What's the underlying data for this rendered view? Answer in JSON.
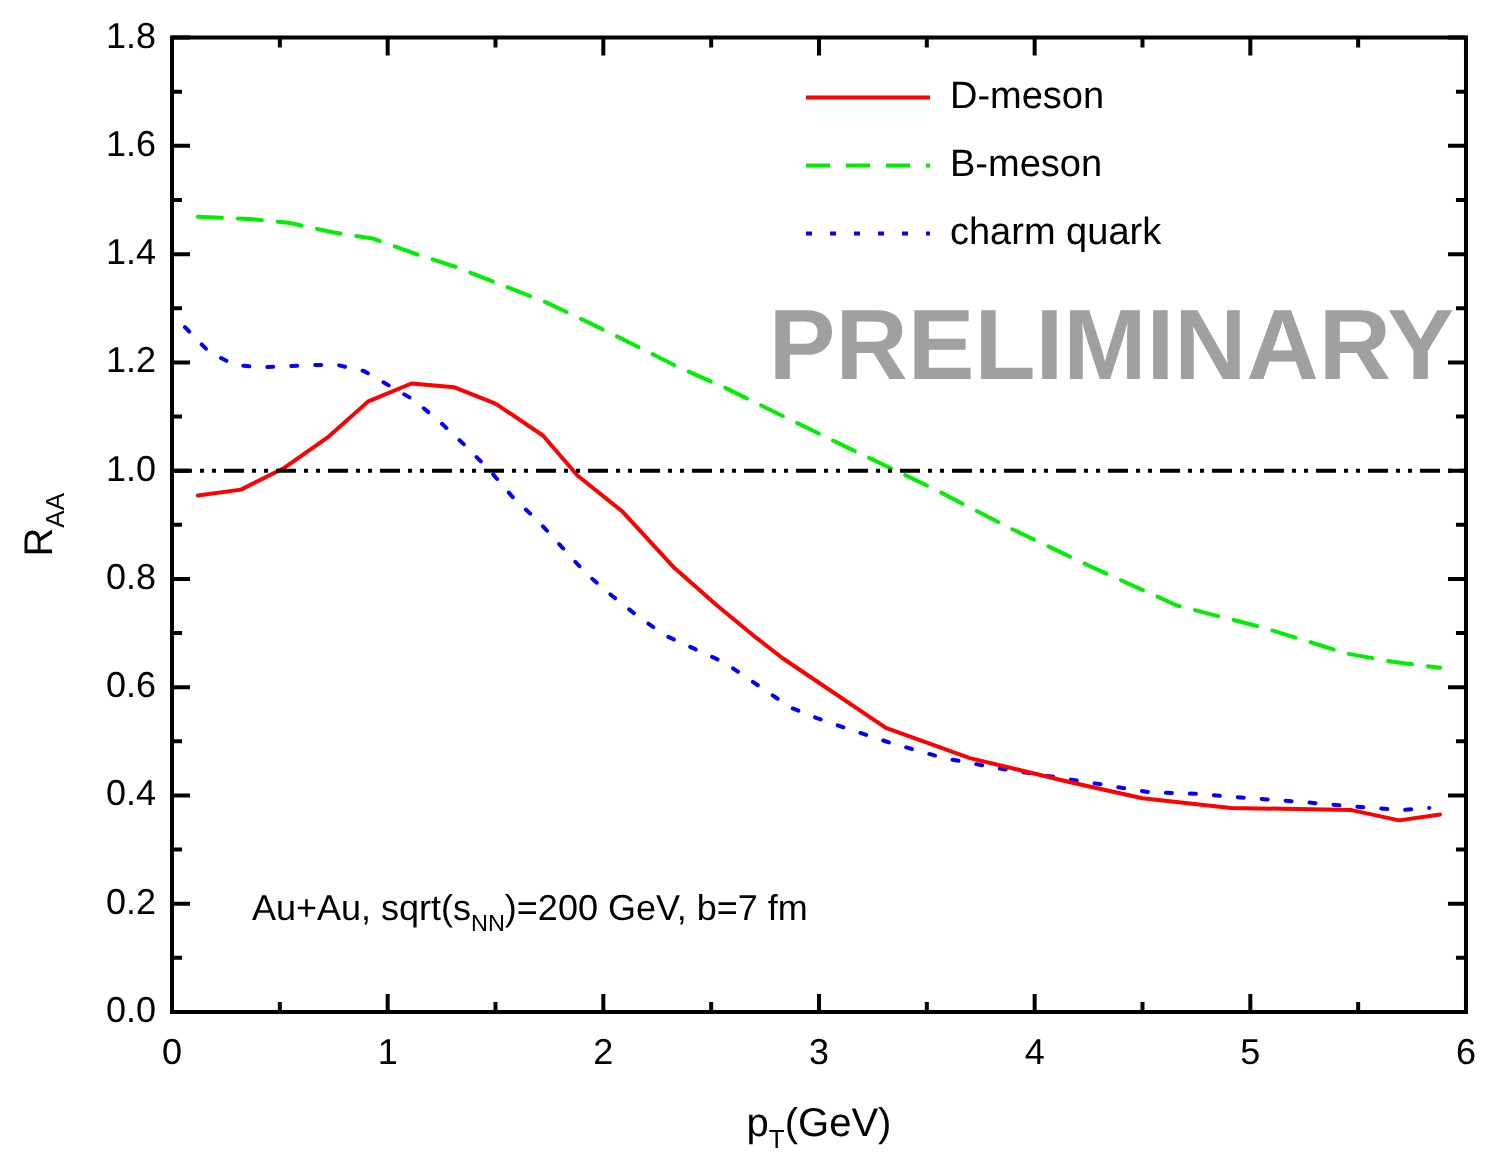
{
  "chart_data": {
    "type": "line",
    "xlabel": "p$_{T}$(GeV)",
    "ylabel": "R$_{AA}$",
    "xlim": [
      0,
      6
    ],
    "ylim": [
      0,
      1.8
    ],
    "xticks": [
      0,
      {
        "value": 0.5,
        "label": null
      },
      1,
      {
        "value": 1.5,
        "label": null
      },
      2,
      {
        "value": 2.5,
        "label": null
      },
      3,
      {
        "value": 3.5,
        "label": null
      },
      4,
      {
        "value": 4.5,
        "label": null
      },
      5,
      {
        "value": 5.5,
        "label": null
      },
      6
    ],
    "yticks": [
      {
        "value": 0,
        "label": "0.0"
      },
      {
        "value": 0.1,
        "label": null
      },
      0.2,
      {
        "value": 0.3,
        "label": null
      },
      0.4,
      {
        "value": 0.5,
        "label": null
      },
      0.6,
      {
        "value": 0.7,
        "label": null
      },
      0.8,
      {
        "value": 0.9,
        "label": null
      },
      {
        "value": 1,
        "label": "1.0"
      },
      {
        "value": 1.1,
        "label": null
      },
      1.2,
      {
        "value": 1.3,
        "label": null
      },
      1.4,
      {
        "value": 1.5,
        "label": null
      },
      1.6,
      {
        "value": 1.7,
        "label": null
      },
      1.8
    ],
    "grid": false,
    "legend": "top right",
    "marker": "none",
    "series": [
      {
        "name": "D-meson",
        "color": "#ff0000",
        "line_style": "solid",
        "x": [
          0.12,
          0.32,
          0.52,
          0.72,
          0.91,
          1.11,
          1.31,
          1.5,
          1.72,
          1.88,
          2.09,
          2.33,
          2.53,
          2.71,
          2.83,
          3.31,
          3.7,
          4.16,
          4.5,
          4.91,
          5.47,
          5.69,
          5.88
        ],
        "values": [
          0.954,
          0.965,
          1.005,
          1.061,
          1.128,
          1.161,
          1.154,
          1.124,
          1.065,
          0.991,
          0.924,
          0.82,
          0.75,
          0.691,
          0.654,
          0.525,
          0.469,
          0.425,
          0.395,
          0.377,
          0.373,
          0.354,
          0.365
        ]
      },
      {
        "name": "B-meson",
        "color": "#00ee00",
        "line_style": "dashed",
        "x": [
          0.12,
          0.36,
          0.54,
          0.75,
          0.93,
          1.14,
          1.32,
          1.53,
          1.74,
          1.92,
          2.13,
          2.35,
          2.56,
          2.93,
          3.13,
          3.52,
          3.88,
          4.27,
          4.66,
          5.06,
          5.45,
          5.66,
          5.88
        ],
        "values": [
          1.469,
          1.465,
          1.458,
          1.44,
          1.429,
          1.399,
          1.376,
          1.343,
          1.31,
          1.276,
          1.235,
          1.191,
          1.154,
          1.082,
          1.043,
          0.969,
          0.895,
          0.821,
          0.751,
          0.71,
          0.662,
          0.647,
          0.636
        ]
      },
      {
        "name": "charm quark",
        "color": "#0000ff",
        "line_style": "dotted",
        "x": [
          0.06,
          0.17,
          0.29,
          0.41,
          0.65,
          0.77,
          0.89,
          0.99,
          1.12,
          1.24,
          1.35,
          1.47,
          1.58,
          1.7,
          1.81,
          1.92,
          2.04,
          2.17,
          2.29,
          2.56,
          2.87,
          2.99,
          3.12,
          3.34,
          3.58,
          3.82,
          4.06,
          4.3,
          4.53,
          4.75,
          5.0,
          5.24,
          5.47,
          5.7,
          5.83
        ],
        "values": [
          1.265,
          1.22,
          1.195,
          1.191,
          1.195,
          1.195,
          1.184,
          1.161,
          1.131,
          1.091,
          1.05,
          1.002,
          0.951,
          0.906,
          0.858,
          0.81,
          0.769,
          0.728,
          0.695,
          0.646,
          0.562,
          0.543,
          0.525,
          0.496,
          0.469,
          0.451,
          0.436,
          0.421,
          0.406,
          0.403,
          0.395,
          0.388,
          0.38,
          0.373,
          0.377
        ]
      }
    ],
    "ref_lines": [
      {
        "axis": "y",
        "value": 1,
        "color": "#000000",
        "line_style": "dashed"
      }
    ],
    "annotations": [
      "PRELIMINARY",
      "Au+Au, sqrt(s$_{NN}$)=200 GeV, b=7 fm"
    ]
  }
}
